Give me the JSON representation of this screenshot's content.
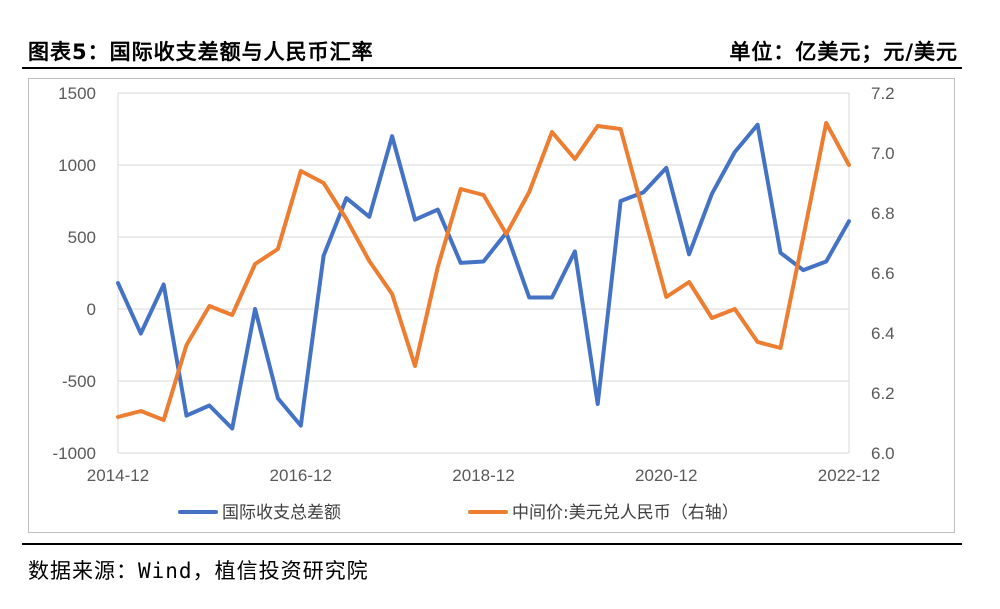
{
  "header": {
    "title": "图表5：国际收支差额与人民币汇率",
    "unit": "单位：亿美元；元/美元"
  },
  "source": "数据来源：Wind，植信投资研究院",
  "colors": {
    "series1": "#4472C4",
    "series2": "#ED7D31",
    "grid": "#d9d9d9",
    "tick": "#595959"
  },
  "chart_data": {
    "type": "line",
    "x_tick_labels": [
      "2014-12",
      "2016-12",
      "2018-12",
      "2020-12",
      "2022-12"
    ],
    "x": [
      "2014-12",
      "2015-03",
      "2015-06",
      "2015-09",
      "2015-12",
      "2016-03",
      "2016-06",
      "2016-09",
      "2016-12",
      "2017-03",
      "2017-06",
      "2017-09",
      "2017-12",
      "2018-03",
      "2018-06",
      "2018-09",
      "2018-12",
      "2019-03",
      "2019-06",
      "2019-09",
      "2019-12",
      "2020-03",
      "2020-06",
      "2020-09",
      "2020-12",
      "2021-03",
      "2021-06",
      "2021-09",
      "2021-12",
      "2022-03",
      "2022-06",
      "2022-09",
      "2022-12"
    ],
    "left_axis": {
      "ylim": [
        -1000,
        1500
      ],
      "ticks": [
        "-1000",
        "-500",
        "0",
        "500",
        "1000",
        "1500"
      ]
    },
    "right_axis": {
      "ylim": [
        6.0,
        7.2
      ],
      "ticks": [
        "6.0",
        "6.2",
        "6.4",
        "6.6",
        "6.8",
        "7.0",
        "7.2"
      ]
    },
    "grid": "horizontal",
    "legend_position": "bottom",
    "series": [
      {
        "name": "国际收支总差额",
        "axis": "left",
        "color": "#4472C4",
        "values": [
          180,
          -170,
          170,
          -740,
          -670,
          -830,
          0,
          -620,
          -810,
          370,
          770,
          640,
          1200,
          620,
          690,
          320,
          330,
          530,
          80,
          80,
          400,
          -660,
          750,
          810,
          980,
          380,
          800,
          1090,
          1280,
          390,
          270,
          330,
          610
        ]
      },
      {
        "name": "中间价:美元兑人民币（右轴）",
        "axis": "right",
        "color": "#ED7D31",
        "values": [
          6.12,
          6.14,
          6.11,
          6.36,
          6.49,
          6.46,
          6.63,
          6.68,
          6.94,
          6.9,
          6.78,
          6.64,
          6.53,
          6.29,
          6.62,
          6.88,
          6.86,
          6.73,
          6.87,
          7.07,
          6.98,
          7.09,
          7.08,
          6.8,
          6.52,
          6.57,
          6.45,
          6.48,
          6.37,
          6.35,
          6.72,
          7.1,
          6.96
        ]
      }
    ]
  }
}
